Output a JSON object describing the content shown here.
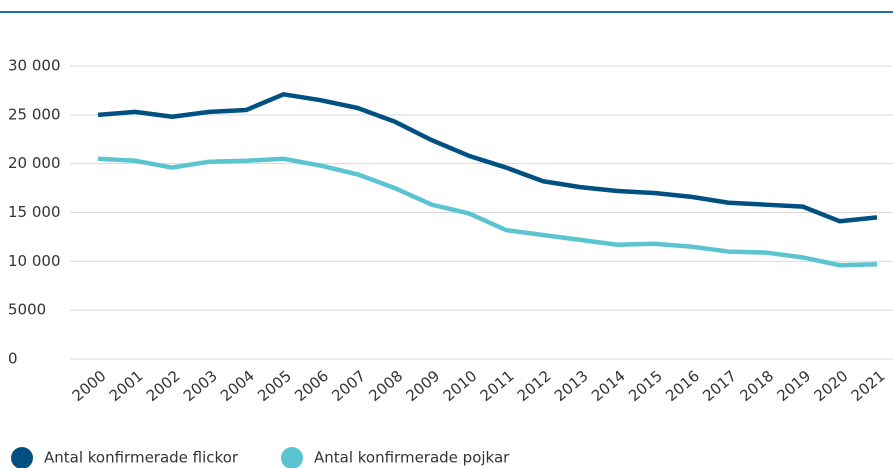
{
  "chart_data": {
    "type": "line",
    "categories": [
      "2000",
      "2001",
      "2002",
      "2003",
      "2004",
      "2005",
      "2006",
      "2007",
      "2008",
      "2009",
      "2010",
      "2011",
      "2012",
      "2013",
      "2014",
      "2015",
      "2016",
      "2017",
      "2018",
      "2019",
      "2020",
      "2021"
    ],
    "series": [
      {
        "name": "Antal konfirmerade flickor",
        "color": "#005182",
        "values": [
          25000,
          25300,
          24800,
          25300,
          25500,
          27100,
          26500,
          25700,
          24300,
          22400,
          20800,
          19600,
          18200,
          17600,
          17200,
          17000,
          16600,
          16000,
          15800,
          15600,
          14100,
          14500
        ]
      },
      {
        "name": "Antal konfirmerade pojkar",
        "color": "#5bc4d1",
        "values": [
          20500,
          20300,
          19600,
          20200,
          20300,
          20500,
          19800,
          18900,
          17500,
          15800,
          14900,
          13200,
          12700,
          12200,
          11700,
          11800,
          11500,
          11000,
          10900,
          10400,
          9600,
          9700
        ]
      }
    ],
    "ylim": [
      0,
      30000
    ],
    "yticks": [
      0,
      5000,
      {
        "value": 10000,
        "label": "10 000"
      },
      {
        "value": 15000,
        "label": "15 000"
      },
      {
        "value": 20000,
        "label": "20 000"
      },
      {
        "value": 25000,
        "label": "25 000"
      },
      {
        "value": 30000,
        "label": "30 000"
      }
    ],
    "grid": true
  }
}
